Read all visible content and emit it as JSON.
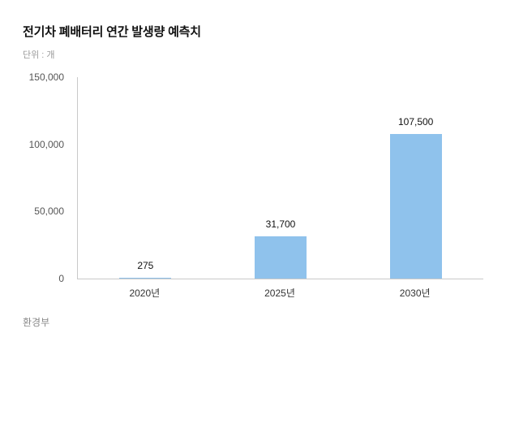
{
  "chart_data": {
    "type": "bar",
    "title": "전기차 폐배터리 연간 발생량 예측치",
    "subtitle": "단위 : 개",
    "categories": [
      "2020년",
      "2025년",
      "2030년"
    ],
    "values": [
      275,
      31700,
      107500
    ],
    "value_labels": [
      "275",
      "31,700",
      "107,500"
    ],
    "ylim": [
      0,
      150000
    ],
    "yticks": [
      0,
      50000,
      100000,
      150000
    ],
    "ytick_labels": [
      "0",
      "50,000",
      "100,000",
      "150,000"
    ],
    "bar_color": "#8FC2EC",
    "grid": false,
    "legend": false,
    "xlabel": "",
    "ylabel": "",
    "source": "환경부"
  }
}
